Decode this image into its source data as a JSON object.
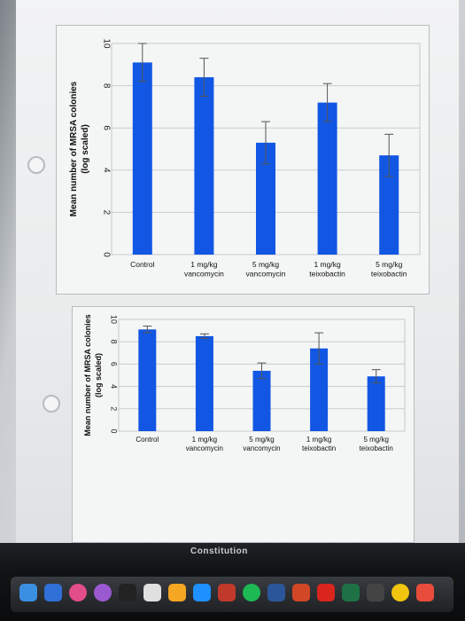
{
  "chart_data": [
    {
      "type": "bar",
      "categories": [
        "Control",
        "1 mg/kg\nvancomycin",
        "5 mg/kg\nvancomycin",
        "1 mg/kg\nteixobactin",
        "5 mg/kg\nteixobactin"
      ],
      "values": [
        9.1,
        8.4,
        5.3,
        7.2,
        4.7
      ],
      "errors": [
        0.9,
        0.9,
        1.0,
        0.9,
        1.0
      ],
      "ylabel": "Mean number of MRSA colonies\n(log scaled)",
      "ylim": [
        0,
        10
      ],
      "yticks": [
        0,
        2,
        4,
        6,
        8,
        10
      ],
      "grid": true,
      "bar_color": "#1257e3"
    },
    {
      "type": "bar",
      "categories": [
        "Control",
        "1 mg/kg\nvancomycin",
        "5 mg/kg\nvancomycin",
        "1 mg/kg\nteixobactin",
        "5 mg/kg\nteixobactin"
      ],
      "values": [
        9.1,
        8.5,
        5.4,
        7.4,
        4.9
      ],
      "errors": [
        0.3,
        0.2,
        0.7,
        1.4,
        0.6
      ],
      "ylabel": "Mean number of MRSA colonies\n(log scaled)",
      "ylim": [
        0,
        10
      ],
      "yticks": [
        0,
        2,
        4,
        6,
        8,
        10
      ],
      "grid": true,
      "bar_color": "#1257e3"
    }
  ],
  "screen_text": "Constitution",
  "dock": {
    "icons": [
      "finder-icon",
      "keynote-icon",
      "itunes-icon",
      "podcasts-icon",
      "appletv-icon",
      "no-entry-icon",
      "books-icon",
      "appstore-icon",
      "photobooth-icon",
      "spotify-icon",
      "word-icon",
      "powerpoint-icon",
      "acrobat-icon",
      "excel-icon",
      "camera-icon",
      "photos-icon",
      "calendar-icon"
    ]
  }
}
